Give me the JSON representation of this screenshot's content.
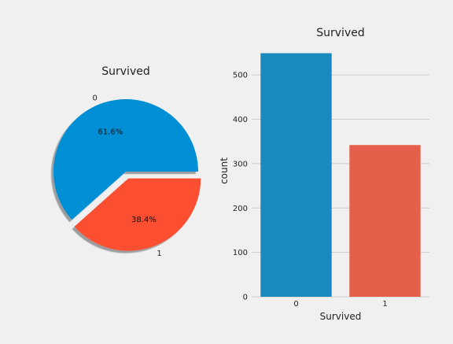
{
  "chart_data": [
    {
      "type": "pie",
      "title": "Survived",
      "labels": [
        "0",
        "1"
      ],
      "values": [
        61.6,
        38.4
      ],
      "value_labels": [
        "61.6%",
        "38.4%"
      ],
      "explode": [
        0,
        0.1
      ],
      "shadow": true,
      "colors": [
        "#008fd5",
        "#fc4f30"
      ]
    },
    {
      "type": "bar",
      "title": "Survived",
      "xlabel": "Survived",
      "ylabel": "count",
      "categories": [
        "0",
        "1"
      ],
      "values": [
        549,
        342
      ],
      "ylim": [
        0,
        550
      ],
      "yticks": [
        0,
        100,
        200,
        300,
        400,
        500
      ],
      "grid": true,
      "colors": [
        "#1a89c0",
        "#e5604a"
      ]
    }
  ]
}
